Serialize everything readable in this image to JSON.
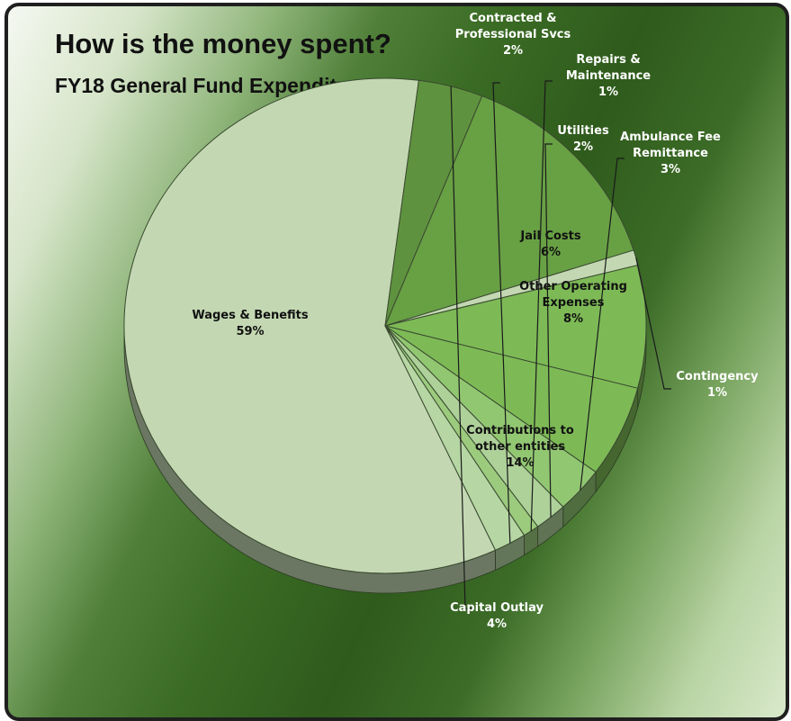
{
  "chart_data": {
    "type": "pie",
    "title": "How is the money spent?",
    "subtitle": "FY18 General Fund Expenditures",
    "slices": [
      {
        "label": "Wages & Benefits",
        "value": 59,
        "color": "#c3d8b2"
      },
      {
        "label": "Capital Outlay",
        "value": 4,
        "color": "#5f923e"
      },
      {
        "label": "Contributions to other entities",
        "value": 14,
        "color": "#68a044"
      },
      {
        "label": "Contingency",
        "value": 1,
        "color": "#c3d8b2"
      },
      {
        "label": "Other Operating Expenses",
        "value": 8,
        "color": "#7dba56"
      },
      {
        "label": "Jail Costs",
        "value": 6,
        "color": "#7dba56"
      },
      {
        "label": "Ambulance Fee Remittance",
        "value": 3,
        "color": "#92c772"
      },
      {
        "label": "Utilities",
        "value": 2,
        "color": "#aed19a"
      },
      {
        "label": "Repairs & Maintenance",
        "value": 1,
        "color": "#9ccb7e"
      },
      {
        "label": "Contracted & Professional Svcs",
        "value": 2,
        "color": "#b6d6a4"
      }
    ],
    "display_labels": {
      "Wages & Benefits": [
        "Wages & Benefits",
        "59%"
      ],
      "Capital Outlay": [
        "Capital Outlay",
        "4%"
      ],
      "Contributions to other entities": [
        "Contributions to",
        "other entities",
        "14%"
      ],
      "Contingency": [
        "Contingency",
        "1%"
      ],
      "Other Operating Expenses": [
        "Other Operating",
        "Expenses",
        "8%"
      ],
      "Jail Costs": [
        "Jail Costs",
        "6%"
      ],
      "Ambulance Fee Remittance": [
        "Ambulance Fee",
        "Remittance",
        "3%"
      ],
      "Utilities": [
        "Utilities",
        "2%"
      ],
      "Repairs & Maintenance": [
        "Repairs &",
        "Maintenance",
        "1%"
      ],
      "Contracted & Professional Svcs": [
        "Contracted &",
        "Professional Svcs",
        "2%"
      ]
    },
    "legend": "none",
    "style": "3d-pie"
  }
}
